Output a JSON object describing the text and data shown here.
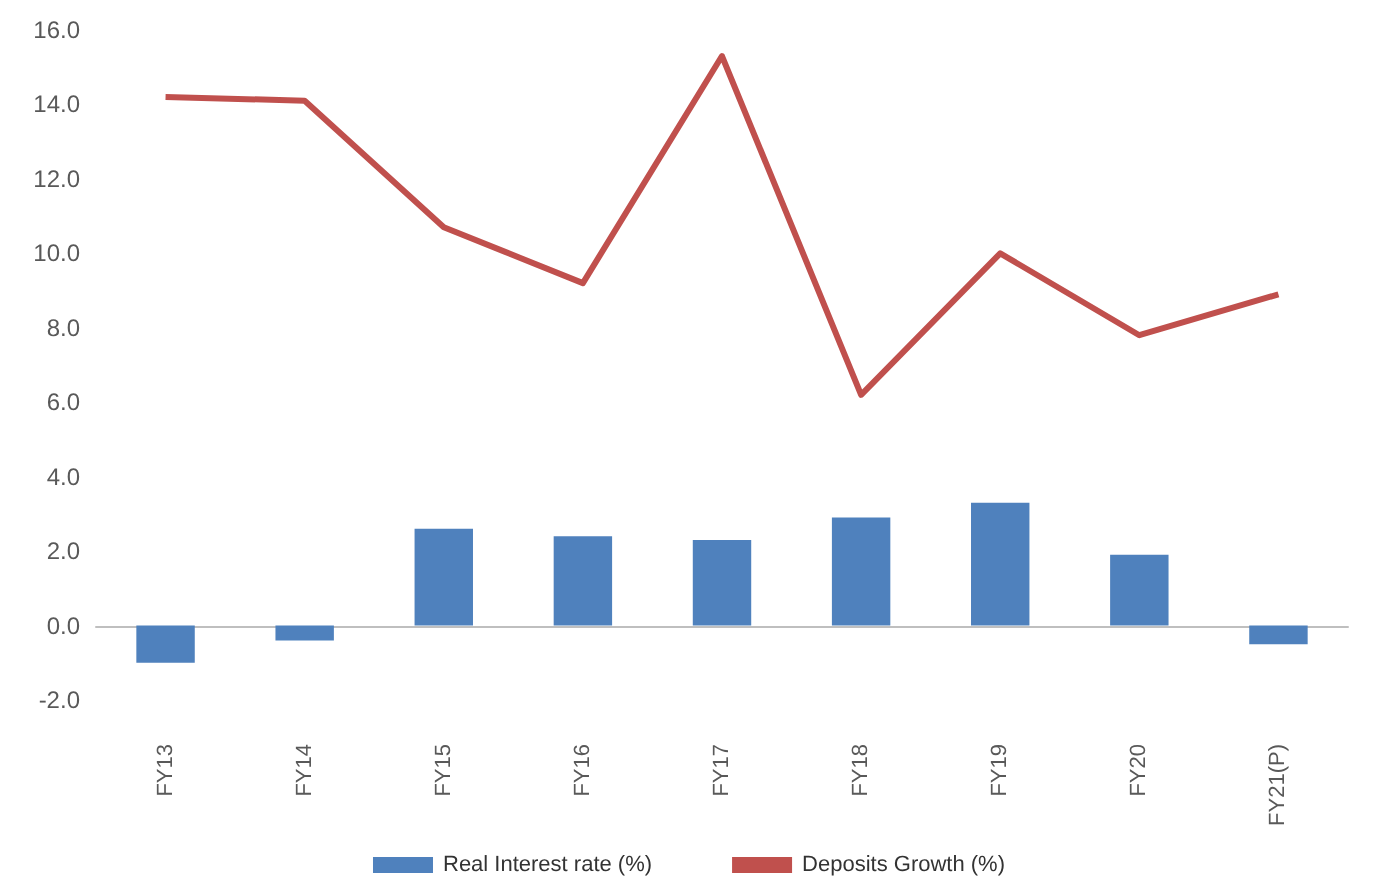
{
  "chart_data": {
    "type": "bar",
    "categories": [
      "FY13",
      "FY14",
      "FY15",
      "FY16",
      "FY17",
      "FY18",
      "FY19",
      "FY20",
      "FY21(P)"
    ],
    "series": [
      {
        "name": "Real Interest rate (%)",
        "color": "#4f81bd",
        "values": [
          -1.0,
          -0.4,
          2.6,
          2.4,
          2.3,
          2.9,
          3.3,
          1.9,
          -0.5
        ]
      },
      {
        "name": "Deposits Growth (%)",
        "type": "line",
        "color": "#c0504d",
        "values": [
          14.2,
          14.1,
          10.7,
          9.2,
          15.3,
          6.2,
          10.0,
          7.8,
          8.9
        ]
      }
    ],
    "ylim": [
      -2,
      16
    ],
    "yticks": [
      {
        "value": -2,
        "label": "-2.0"
      },
      {
        "value": 0,
        "label": "0.0"
      },
      {
        "value": 2,
        "label": "2.0"
      },
      {
        "value": 4,
        "label": "4.0"
      },
      {
        "value": 6,
        "label": "6.0"
      },
      {
        "value": 8,
        "label": "8.0"
      },
      {
        "value": 10,
        "label": "10.0"
      },
      {
        "value": 12,
        "label": "12.0"
      },
      {
        "value": 14,
        "label": "14.0"
      },
      {
        "value": 16,
        "label": "16.0"
      }
    ],
    "legend": "bottom",
    "marker": "none"
  }
}
